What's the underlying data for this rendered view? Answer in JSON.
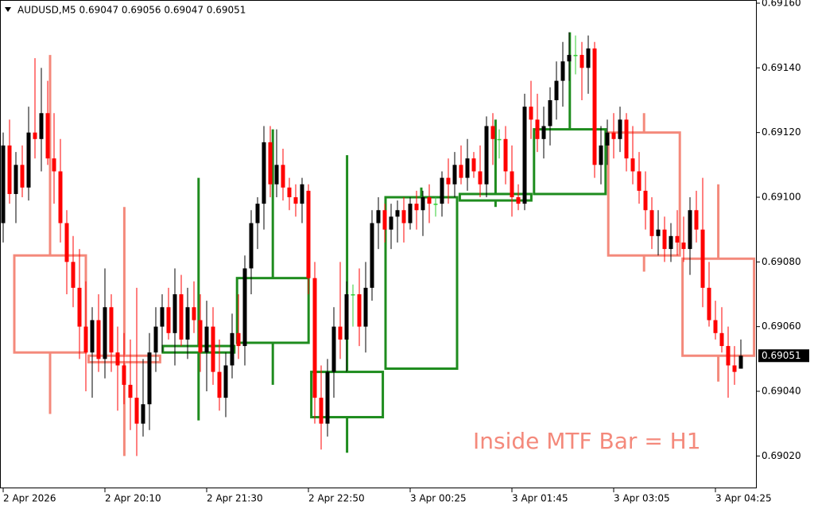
{
  "chart_data": {
    "type": "candlestick",
    "title": "AUDUSD,M5  0.69047 0.69056 0.69047 0.69051",
    "annotation": "Inside MTF Bar = H1",
    "categories": [
      "2 Apr 2026",
      null,
      null,
      null,
      null,
      null,
      null,
      null,
      null,
      null,
      null,
      null,
      null,
      null,
      null,
      null,
      "2 Apr 20:10",
      null,
      null,
      null,
      null,
      null,
      null,
      null,
      null,
      null,
      null,
      null,
      null,
      null,
      null,
      null,
      "2 Apr 21:30",
      null,
      null,
      null,
      null,
      null,
      null,
      null,
      null,
      null,
      null,
      null,
      null,
      null,
      null,
      null,
      "2 Apr 22:50",
      null,
      null,
      null,
      null,
      null,
      null,
      null,
      null,
      null,
      null,
      null,
      null,
      null,
      null,
      null,
      "3 Apr 00:25",
      null,
      null,
      null,
      null,
      null,
      null,
      null,
      null,
      null,
      null,
      null,
      null,
      null,
      null,
      null,
      "3 Apr 01:45",
      null,
      null,
      null,
      null,
      null,
      null,
      null,
      null,
      null,
      null,
      null,
      null,
      null,
      null,
      null,
      "3 Apr 03:05",
      null,
      null,
      null,
      null,
      null,
      null,
      null,
      null,
      null,
      null,
      null,
      null,
      null,
      null,
      null,
      "3 Apr 04:25",
      null,
      null,
      null,
      null
    ],
    "open": [
      0.69092,
      0.69116,
      0.69101,
      0.6911,
      0.69103,
      0.6912,
      0.69118,
      0.69126,
      0.69112,
      0.69108,
      0.69092,
      0.6908,
      0.69072,
      0.6906,
      0.69052,
      0.69062,
      0.6905,
      0.69066,
      0.69052,
      0.69048,
      0.69042,
      0.69038,
      0.6903,
      0.69036,
      0.69052,
      0.6906,
      0.69066,
      0.69058,
      0.6907,
      0.69056,
      0.69066,
      0.69062,
      0.69052,
      0.6906,
      0.69046,
      0.69038,
      0.69048,
      0.69058,
      0.69054,
      0.69078,
      0.69092,
      0.69098,
      0.69117,
      0.69104,
      0.6911,
      0.69103,
      0.691,
      0.69098,
      0.69102,
      0.69075,
      0.69038,
      0.6903,
      0.69046,
      0.6906,
      0.69056,
      0.6907,
      0.6907,
      0.6906,
      0.69072,
      0.69092,
      0.69096,
      0.6909,
      0.69094,
      0.69096,
      0.69092,
      0.69098,
      0.69096,
      0.691,
      0.69098,
      0.69098,
      0.69106,
      0.69104,
      0.6911,
      0.69106,
      0.69112,
      0.69108,
      0.69104,
      0.69122,
      0.69118,
      0.69118,
      0.69108,
      0.691,
      0.69098,
      0.69128,
      0.69124,
      0.69118,
      0.69122,
      0.6913,
      0.69136,
      0.69142,
      0.69144,
      0.69144,
      0.6914,
      0.69146,
      0.6911,
      0.69116,
      0.6912,
      0.69118,
      0.69124,
      0.69112,
      0.69108,
      0.69102,
      0.69096,
      0.69088,
      0.6909,
      0.69084,
      0.69088,
      0.69086,
      0.69084,
      0.69096,
      0.6909,
      0.69072,
      0.69062,
      0.69058,
      0.69054,
      0.69048,
      0.69047
    ],
    "high": [
      0.6912,
      0.69124,
      0.69114,
      0.69116,
      0.69128,
      0.69143,
      0.6914,
      0.69136,
      0.69126,
      0.69118,
      0.69096,
      0.69088,
      0.69084,
      0.69074,
      0.69066,
      0.6907,
      0.69078,
      0.6907,
      0.6906,
      0.69058,
      0.69056,
      0.69072,
      0.6905,
      0.69058,
      0.69066,
      0.6907,
      0.69072,
      0.69078,
      0.69076,
      0.69072,
      0.69074,
      0.6907,
      0.69068,
      0.69066,
      0.69056,
      0.69052,
      0.69064,
      0.6907,
      0.69082,
      0.69096,
      0.691,
      0.69122,
      0.69122,
      0.69121,
      0.69115,
      0.69106,
      0.69104,
      0.69106,
      0.69104,
      0.6908,
      0.69048,
      0.6905,
      0.69066,
      0.6908,
      0.69074,
      0.69073,
      0.69078,
      0.6908,
      0.69096,
      0.691,
      0.69098,
      0.69098,
      0.69099,
      0.691,
      0.691,
      0.69102,
      0.69102,
      0.69104,
      0.691,
      0.69108,
      0.69112,
      0.69114,
      0.69116,
      0.69118,
      0.69114,
      0.69116,
      0.69125,
      0.69126,
      0.69121,
      0.69122,
      0.69116,
      0.69104,
      0.69132,
      0.69136,
      0.69132,
      0.69128,
      0.69134,
      0.69142,
      0.69148,
      0.69151,
      0.6915,
      0.69148,
      0.6915,
      0.69148,
      0.69122,
      0.69124,
      0.69126,
      0.69128,
      0.69126,
      0.69122,
      0.69114,
      0.69108,
      0.691,
      0.69096,
      0.69094,
      0.69092,
      0.69096,
      0.69094,
      0.691,
      0.69102,
      0.69106,
      0.6908,
      0.69068,
      0.69066,
      0.6906,
      0.69054,
      0.69056
    ],
    "low": [
      0.69086,
      0.69098,
      0.69092,
      0.691,
      0.69099,
      0.69112,
      0.69108,
      0.6911,
      0.69098,
      0.69086,
      0.6907,
      0.69066,
      0.6905,
      0.6904,
      0.69038,
      0.69046,
      0.69044,
      0.69046,
      0.69034,
      0.69036,
      0.69028,
      0.6902,
      0.69026,
      0.69028,
      0.69046,
      0.69052,
      0.69056,
      0.69048,
      0.69054,
      0.6905,
      0.69058,
      0.69046,
      0.6904,
      0.69042,
      0.69034,
      0.69032,
      0.69044,
      0.6905,
      0.69048,
      0.6907,
      0.69084,
      0.6909,
      0.691,
      0.691,
      0.69099,
      0.69096,
      0.69094,
      0.69092,
      0.6907,
      0.6903,
      0.69022,
      0.69026,
      0.69038,
      0.6905,
      0.69046,
      0.6906,
      0.69054,
      0.69052,
      0.69068,
      0.69084,
      0.69086,
      0.69084,
      0.69086,
      0.69086,
      0.6909,
      0.6909,
      0.69088,
      0.69092,
      0.69094,
      0.69094,
      0.69098,
      0.691,
      0.69104,
      0.69102,
      0.69106,
      0.691,
      0.691,
      0.6911,
      0.69112,
      0.69104,
      0.69094,
      0.69096,
      0.69096,
      0.69118,
      0.69114,
      0.69112,
      0.69116,
      0.69124,
      0.69128,
      0.69136,
      0.69138,
      0.6913,
      0.69132,
      0.69106,
      0.69104,
      0.6911,
      0.69112,
      0.69114,
      0.69108,
      0.69104,
      0.69098,
      0.6909,
      0.69084,
      0.69082,
      0.6908,
      0.6908,
      0.69082,
      0.6908,
      0.69076,
      0.69086,
      0.69066,
      0.6906,
      0.69056,
      0.69052,
      0.69038,
      0.69042,
      0.69047
    ],
    "close": [
      0.69116,
      0.69101,
      0.6911,
      0.69103,
      0.6912,
      0.69118,
      0.69126,
      0.69112,
      0.69108,
      0.69092,
      0.6908,
      0.69072,
      0.6906,
      0.69052,
      0.69062,
      0.6905,
      0.69066,
      0.69052,
      0.69048,
      0.69042,
      0.69038,
      0.6903,
      0.69036,
      0.69052,
      0.6906,
      0.69066,
      0.69058,
      0.6907,
      0.69056,
      0.69066,
      0.69062,
      0.69052,
      0.6906,
      0.69046,
      0.69038,
      0.69048,
      0.69058,
      0.69054,
      0.69078,
      0.69092,
      0.69098,
      0.69117,
      0.69104,
      0.6911,
      0.69103,
      0.691,
      0.69098,
      0.69104,
      0.69075,
      0.69038,
      0.6903,
      0.69046,
      0.6906,
      0.69056,
      0.6907,
      0.6907,
      0.6906,
      0.69072,
      0.69092,
      0.69096,
      0.6909,
      0.69094,
      0.69096,
      0.69092,
      0.69098,
      0.69096,
      0.691,
      0.69098,
      0.69098,
      0.69106,
      0.69104,
      0.6911,
      0.69106,
      0.69112,
      0.69108,
      0.69104,
      0.69122,
      0.69118,
      0.69118,
      0.69108,
      0.691,
      0.69098,
      0.69128,
      0.69124,
      0.69118,
      0.69122,
      0.6913,
      0.69136,
      0.69142,
      0.69144,
      0.69144,
      0.6914,
      0.69146,
      0.6911,
      0.69116,
      0.6912,
      0.69118,
      0.69124,
      0.69112,
      0.69108,
      0.69102,
      0.69096,
      0.69088,
      0.6909,
      0.69084,
      0.69088,
      0.69086,
      0.69084,
      0.69096,
      0.6909,
      0.69072,
      0.69062,
      0.69058,
      0.69054,
      0.69048,
      0.69046,
      0.69051
    ],
    "bull_color": "#000000",
    "bear_color": "#ff0000",
    "doji_color": "#32cd32",
    "h1": {
      "open": [
        0.69082,
        0.69051,
        0.69052,
        0.69055,
        0.69032,
        0.69047,
        0.69099,
        0.69101,
        0.6912,
        0.69081
      ],
      "high": [
        0.69144,
        0.69097,
        0.69106,
        0.69121,
        0.69113,
        0.69103,
        0.69124,
        0.69151,
        0.69126,
        0.69104
      ],
      "low": [
        0.69033,
        0.6902,
        0.69031,
        0.69042,
        0.69021,
        0.69047,
        0.69097,
        0.69101,
        0.69077,
        0.69043
      ],
      "close": [
        0.69052,
        0.69049,
        0.69054,
        0.69075,
        0.69046,
        0.691,
        0.69101,
        0.69121,
        0.69082,
        0.69051
      ],
      "bull_color": "#1e8c1e",
      "bear_color": "#f4897b"
    },
    "current_price": 0.69051,
    "ylim": [
      0.6901,
      0.6916
    ],
    "yticks": [
      {
        "value": 0.6902,
        "label": "0.69020"
      },
      {
        "value": 0.6904,
        "label": "0.69040"
      },
      {
        "value": 0.6906,
        "label": "0.69060"
      },
      {
        "value": 0.6908,
        "label": "0.69080"
      },
      {
        "value": 0.691,
        "label": "0.69100"
      },
      {
        "value": 0.6912,
        "label": "0.69120"
      },
      {
        "value": 0.6914,
        "label": "0.69140"
      },
      {
        "value": 0.6916,
        "label": "0.69160"
      }
    ]
  }
}
